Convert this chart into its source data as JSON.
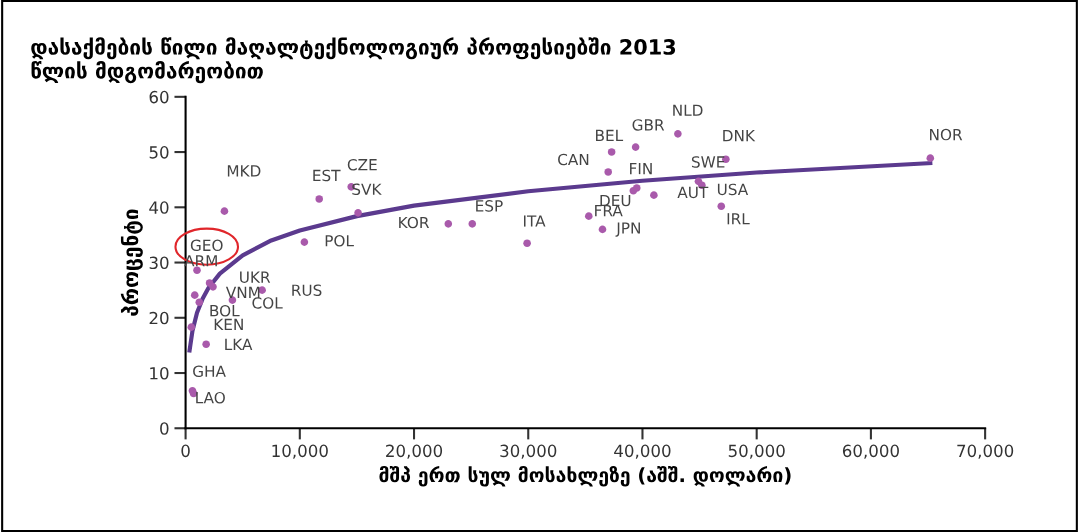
{
  "chart_data": {
    "type": "scatter",
    "title": "დასაქმების წილი მაღალტექნოლოგიურ პროფესიებში 2013\nწლის მდგომარეობით",
    "xlabel": "მშპ ერთ სულ მოსახლეზე (აშშ. დოლარი)",
    "ylabel": "პროცენტი",
    "xlim": [
      0,
      70000
    ],
    "ylim": [
      0,
      60
    ],
    "xticks": [
      0,
      {
        "value": 10000,
        "label": "10,000"
      },
      {
        "value": 20000,
        "label": "20,000"
      },
      {
        "value": 30000,
        "label": "30,000"
      },
      {
        "value": 40000,
        "label": "40,000"
      },
      {
        "value": 50000,
        "label": "50,000"
      },
      {
        "value": 60000,
        "label": "60,000"
      },
      {
        "value": 70000,
        "label": "70,000"
      }
    ],
    "yticks": [
      0,
      10,
      20,
      30,
      40,
      50,
      60
    ],
    "grid": false,
    "series": [
      {
        "marker": "circle",
        "color": "#a95aab",
        "x": [
          3400,
          11700,
          14500,
          15100,
          10400,
          23000,
          25100,
          29900,
          37000,
          37300,
          39400,
          43100,
          39500,
          39200,
          41000,
          44900,
          45200,
          35300,
          36500,
          47300,
          46900,
          65200,
          1000,
          2100,
          2400,
          800,
          6700,
          4100,
          1200,
          500,
          1800,
          600,
          700
        ],
        "values": [
          39.3,
          41.5,
          43.7,
          39,
          33.7,
          37,
          37,
          33.5,
          46.4,
          50,
          50.9,
          53.3,
          43.5,
          43,
          42.2,
          44.7,
          44,
          38.4,
          36,
          48.7,
          40.2,
          48.9,
          28.6,
          26.3,
          25.6,
          24.1,
          25,
          23.2,
          22.8,
          18.3,
          15.2,
          6.8,
          6.3
        ]
      },
      {
        "type": "line",
        "color": "#5b3a8e",
        "line_style": "solid",
        "marker": "none",
        "x": [
          350,
          600,
          1000,
          1500,
          2000,
          3000,
          5000,
          7500,
          10000,
          15000,
          20000,
          30000,
          40000,
          50000,
          65200
        ],
        "values": [
          14.1,
          17.6,
          20.9,
          23.5,
          25.4,
          28.0,
          31.3,
          34.0,
          35.8,
          38.4,
          40.3,
          42.9,
          44.8,
          46.3,
          48.0
        ]
      }
    ],
    "annotations": [
      {
        "text": "MKD",
        "x": 3400,
        "y": 39.3
      },
      {
        "text": "EST",
        "x": 11700,
        "y": 41.5
      },
      {
        "text": "CZE",
        "x": 14500,
        "y": 43.7
      },
      {
        "text": "SVK",
        "x": 15100,
        "y": 39
      },
      {
        "text": "POL",
        "x": 10400,
        "y": 33.7
      },
      {
        "text": "KOR",
        "x": 23000,
        "y": 37
      },
      {
        "text": "ESP",
        "x": 25100,
        "y": 37
      },
      {
        "text": "ITA",
        "x": 29900,
        "y": 33.5
      },
      {
        "text": "CAN",
        "x": 37000,
        "y": 46.4
      },
      {
        "text": "BEL",
        "x": 37300,
        "y": 50
      },
      {
        "text": "GBR",
        "x": 39400,
        "y": 50.9
      },
      {
        "text": "NLD",
        "x": 43100,
        "y": 53.3
      },
      {
        "text": "FIN",
        "x": 39500,
        "y": 43.5
      },
      {
        "text": "DEU",
        "x": 39200,
        "y": 43
      },
      {
        "text": "AUT",
        "x": 41000,
        "y": 42.2
      },
      {
        "text": "SWE",
        "x": 44900,
        "y": 44.7
      },
      {
        "text": "USA",
        "x": 45200,
        "y": 44
      },
      {
        "text": "FRA",
        "x": 35300,
        "y": 38.4
      },
      {
        "text": "JPN",
        "x": 36500,
        "y": 36
      },
      {
        "text": "DNK",
        "x": 47300,
        "y": 48.7
      },
      {
        "text": "IRL",
        "x": 46900,
        "y": 40.2
      },
      {
        "text": "NOR",
        "x": 65200,
        "y": 48.9
      },
      {
        "text": "GEO",
        "x": 1000,
        "y": 28.6
      },
      {
        "text": "ARM",
        "x": 2100,
        "y": 26.3
      },
      {
        "text": "UKR",
        "x": 2400,
        "y": 25.6
      },
      {
        "text": "VNM",
        "x": 800,
        "y": 24.1
      },
      {
        "text": "RUS",
        "x": 6700,
        "y": 25
      },
      {
        "text": "COL",
        "x": 4100,
        "y": 23.2
      },
      {
        "text": "BOL",
        "x": 1200,
        "y": 22.8
      },
      {
        "text": "KEN",
        "x": 500,
        "y": 18.3
      },
      {
        "text": "LKA",
        "x": 1800,
        "y": 15.2
      },
      {
        "text": "GHA",
        "x": 600,
        "y": 6.8
      },
      {
        "text": "LAO",
        "x": 700,
        "y": 6.3
      }
    ]
  }
}
